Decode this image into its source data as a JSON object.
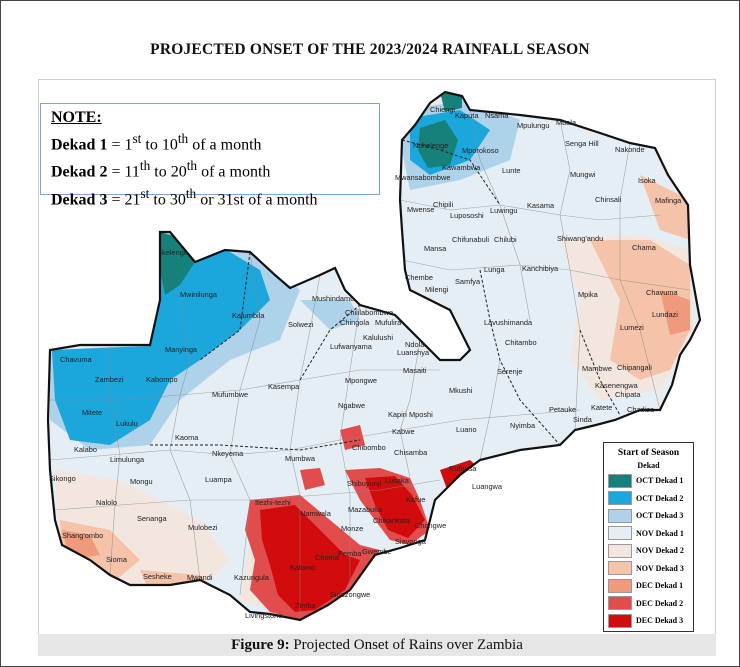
{
  "title": "PROJECTED ONSET OF THE 2023/2024 RAINFALL SEASON",
  "note": {
    "heading": "NOTE:",
    "lines": [
      {
        "label": "Dekad 1",
        "eq": " = ",
        "start": "1",
        "start_sup": "st",
        "mid": " to 10",
        "mid_sup": "th",
        "tail": " of a month"
      },
      {
        "label": "Dekad 2",
        "eq": " = ",
        "start": "11",
        "start_sup": "th",
        "mid": " to 20",
        "mid_sup": "th",
        "tail": " of a month"
      },
      {
        "label": "Dekad 3",
        "eq": " = ",
        "start": "21",
        "start_sup": "st",
        "mid": " to 30",
        "mid_sup": "th",
        "tail": " or 31st of a month"
      }
    ]
  },
  "legend": {
    "title": "Start of Season",
    "subtitle": "Dekad",
    "items": [
      {
        "label": "OCT Dekad 1",
        "color": "#16817a"
      },
      {
        "label": "OCT Dekad 2",
        "color": "#1ba7dc"
      },
      {
        "label": "OCT Dekad 3",
        "color": "#aed2ea"
      },
      {
        "label": "NOV Dekad 1",
        "color": "#e5eef5"
      },
      {
        "label": "NOV Dekad 2",
        "color": "#f3e6df"
      },
      {
        "label": "NOV Dekad 3",
        "color": "#f5c3a9"
      },
      {
        "label": "DEC Dekad 1",
        "color": "#ef9a7c"
      },
      {
        "label": "DEC Dekad 2",
        "color": "#e14c4c"
      },
      {
        "label": "DEC Dekad 3",
        "color": "#d20c0c"
      }
    ]
  },
  "places": [
    "Chiengi",
    "Kaputa",
    "Nsama",
    "Mpulungu",
    "Mbala",
    "Senga Hill",
    "Nakonde",
    "Nchelenge",
    "Mporokoso",
    "Kawambwa",
    "Mwansabombwe",
    "Lunte",
    "Mungwi",
    "Isoka",
    "Chinsali",
    "Mafinga",
    "Mwense",
    "Chipili",
    "Lupososhi",
    "Luwingu",
    "Kasama",
    "Chifunabuli",
    "Chilubi",
    "Shiwang'andu",
    "Chama",
    "Mansa",
    "Lunga",
    "Kanchibiya",
    "Chembe",
    "Milengi",
    "Samfya",
    "Mpika",
    "Chavuma",
    "Chadiza",
    "Ikelenge",
    "Mwinilunga",
    "Mushindamo",
    "Kalumbila",
    "Solwezi",
    "Chililabombwe",
    "Chingola",
    "Mufulira",
    "Kalulushi",
    "Ndola",
    "Luanshya",
    "Lufwanyama",
    "Lavushimanda",
    "Lundazi",
    "Lumezi",
    "Chitambo",
    "Manyinga",
    "Chavuma",
    "Zambezi",
    "Kabompo",
    "Kasempa",
    "Mpongwe",
    "Masaiti",
    "Serenje",
    "Mambwe",
    "Chipangali",
    "Kasenengwa",
    "Chipata",
    "Mufumbwe",
    "Mkushi",
    "Petauke",
    "Katete",
    "Chadiza",
    "Sinda",
    "Mitete",
    "Lukulu",
    "Ngabwe",
    "Kapiri Mposhi",
    "Luano",
    "Nyimba",
    "Kaoma",
    "Kabwe",
    "Chibombo",
    "Chisamba",
    "Kalabo",
    "Limulunga",
    "Nkeyema",
    "Mumbwa",
    "Rufunsa",
    "Sikongo",
    "Mongu",
    "Luampa",
    "Shibuyunji",
    "Lusaka",
    "Luangwa",
    "Kafue",
    "Nalolo",
    "Itezhi-tezhi",
    "Namwala",
    "Mazabuka",
    "Chikankata",
    "Chongwe",
    "Senanga",
    "Mulobezi",
    "Monze",
    "Siavonga",
    "Shang'ombo",
    "Choma",
    "Pemba",
    "Gwembe",
    "Sioma",
    "Sesheke",
    "Mwandi",
    "Kazungula",
    "Kalomo",
    "Sinazongwe",
    "Zimba",
    "Livingstone"
  ],
  "caption": {
    "label": "Figure 9:",
    "text": " Projected Onset of Rains over Zambia"
  }
}
